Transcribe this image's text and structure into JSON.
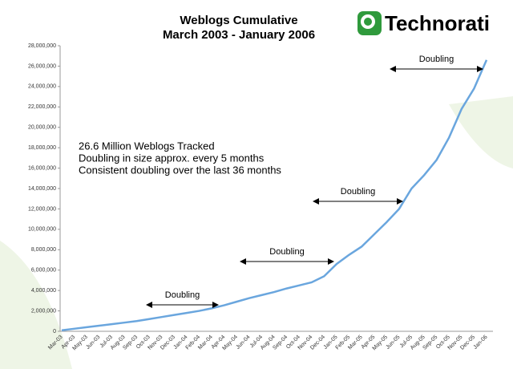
{
  "chart_data": {
    "type": "line",
    "title": "Weblogs Cumulative",
    "subtitle": "March 2003 - January 2006",
    "logo": "Technorati",
    "categories": [
      "Mar-03",
      "Apr-03",
      "May-03",
      "Jun-03",
      "Jul-03",
      "Aug-03",
      "Sep-03",
      "Oct-03",
      "Nov-03",
      "Dec-03",
      "Jan-04",
      "Feb-04",
      "Mar-04",
      "Apr-04",
      "May-04",
      "Jun-04",
      "Jul-04",
      "Aug-04",
      "Sep-04",
      "Oct-04",
      "Nov-04",
      "Dec-04",
      "Jan-05",
      "Feb-05",
      "Mar-05",
      "Apr-05",
      "May-05",
      "Jun-05",
      "Jul-05",
      "Aug-05",
      "Sep-05",
      "Oct-05",
      "Nov-05",
      "Dec-05",
      "Jan-06"
    ],
    "series": [
      {
        "name": "Weblogs",
        "color": "#6aa6de",
        "values": [
          100000,
          250000,
          400000,
          550000,
          700000,
          850000,
          1000000,
          1200000,
          1400000,
          1600000,
          1800000,
          2000000,
          2250000,
          2550000,
          2900000,
          3250000,
          3550000,
          3850000,
          4200000,
          4500000,
          4800000,
          5400000,
          6600000,
          7500000,
          8300000,
          9500000,
          10700000,
          12000000,
          14000000,
          15300000,
          16800000,
          19000000,
          21800000,
          23800000,
          26600000
        ]
      }
    ],
    "ylim": [
      0,
      28000000
    ],
    "yticks": [
      {
        "value": 0,
        "label": "0"
      },
      {
        "value": 2000000,
        "label": "2,000,000"
      },
      {
        "value": 4000000,
        "label": "4,000,000"
      },
      {
        "value": 6000000,
        "label": "6,000,000"
      },
      {
        "value": 8000000,
        "label": "8,000,000"
      },
      {
        "value": 10000000,
        "label": "10,000,000"
      },
      {
        "value": 12000000,
        "label": "12,000,000"
      },
      {
        "value": 14000000,
        "label": "14,000,000"
      },
      {
        "value": 16000000,
        "label": "16,000,000"
      },
      {
        "value": 18000000,
        "label": "18,000,000"
      },
      {
        "value": 20000000,
        "label": "20,000,000"
      },
      {
        "value": 22000000,
        "label": "22,000,000"
      },
      {
        "value": 24000000,
        "label": "24,000,000"
      },
      {
        "value": 26000000,
        "label": "26,000,000"
      },
      {
        "value": 28000000,
        "label": "28,000,000"
      }
    ],
    "notes": [
      "26.6 Million Weblogs Tracked",
      "Doubling in size approx. every 5 months",
      "Consistent doubling over the last 36 months"
    ],
    "annotations": [
      "Doubling",
      "Doubling",
      "Doubling",
      "Doubling"
    ]
  }
}
